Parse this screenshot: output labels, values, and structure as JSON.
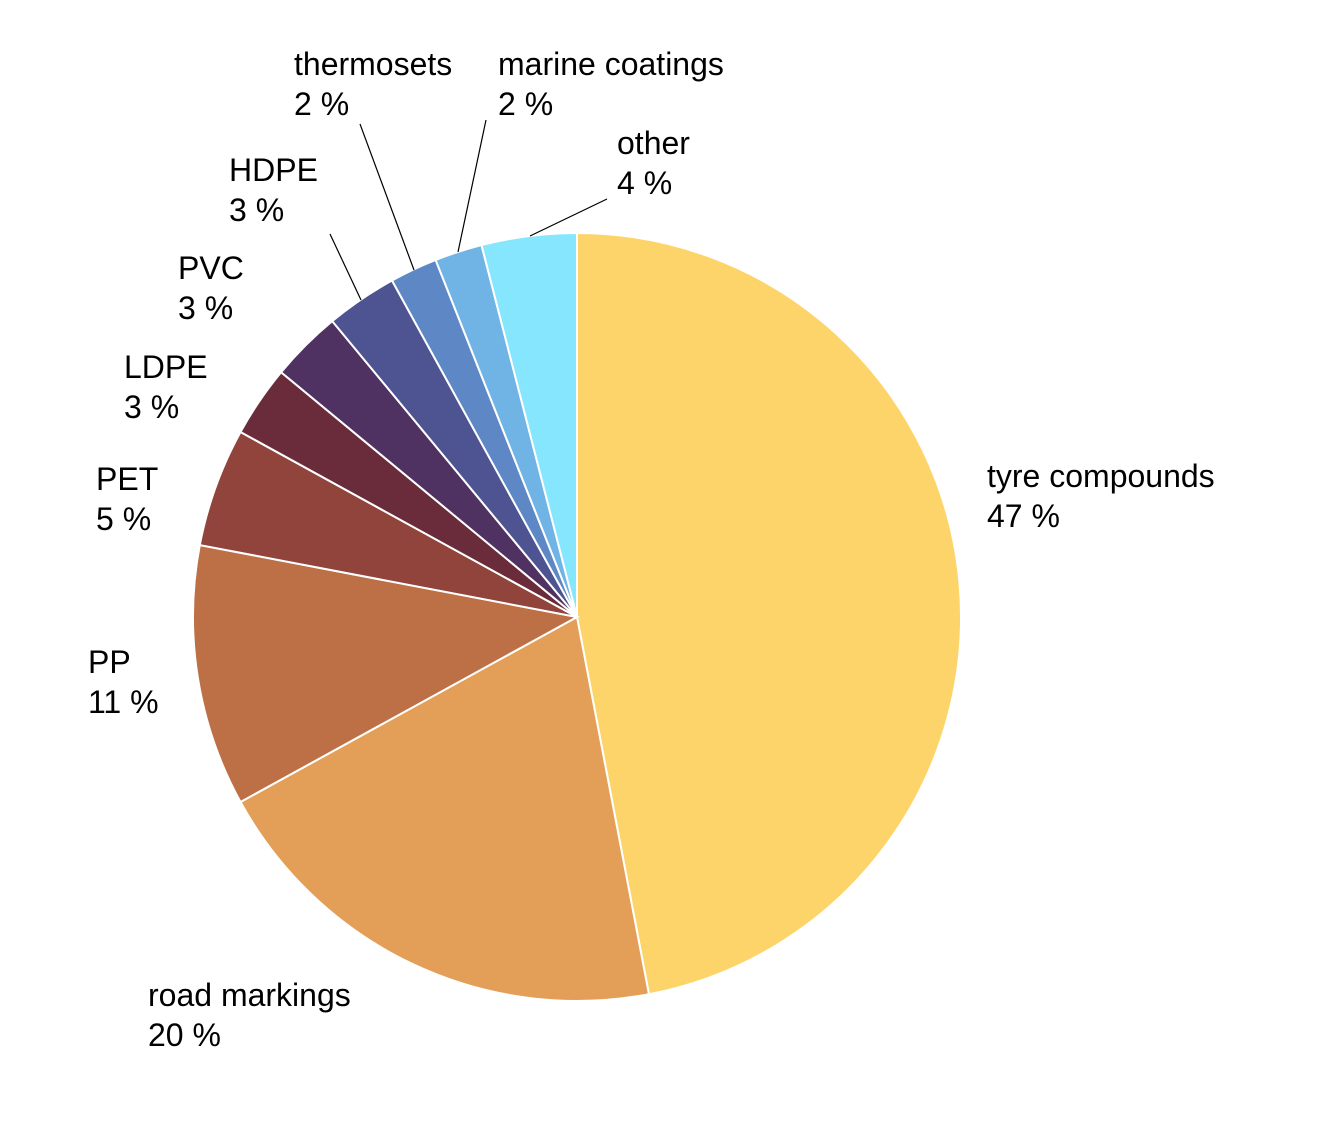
{
  "chart_data": {
    "type": "pie",
    "title": "",
    "start_angle_deg": 0,
    "direction": "clockwise",
    "legend": "none",
    "slices": [
      {
        "name": "tyre compounds",
        "value": 47,
        "value_label": "47 %",
        "color": "#fdd46a"
      },
      {
        "name": "road markings",
        "value": 20,
        "value_label": "20 %",
        "color": "#e39f58"
      },
      {
        "name": "PP",
        "value": 11,
        "value_label": "11 %",
        "color": "#bd6f46"
      },
      {
        "name": "PET",
        "value": 5,
        "value_label": "5 %",
        "color": "#91443b"
      },
      {
        "name": "LDPE",
        "value": 3,
        "value_label": "3 %",
        "color": "#6a2b3b"
      },
      {
        "name": "PVC",
        "value": 3,
        "value_label": "3 %",
        "color": "#4f3262"
      },
      {
        "name": "HDPE",
        "value": 3,
        "value_label": "3 %",
        "color": "#4e5491"
      },
      {
        "name": "thermosets",
        "value": 2,
        "value_label": "2 %",
        "color": "#5e87c5"
      },
      {
        "name": "marine coatings",
        "value": 2,
        "value_label": "2 %",
        "color": "#70b4e5"
      },
      {
        "name": "other",
        "value": 4,
        "value_label": "4 %",
        "color": "#86e6fd"
      }
    ]
  }
}
